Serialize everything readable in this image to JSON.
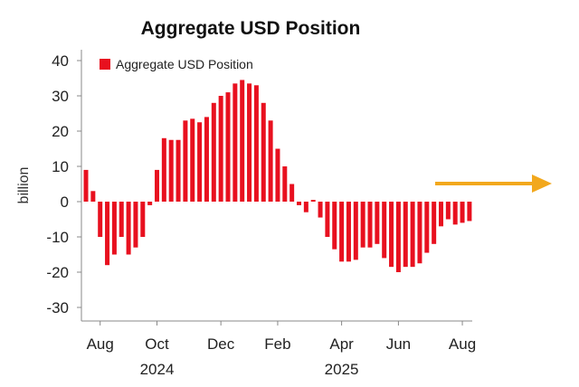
{
  "chart_data": {
    "type": "bar",
    "title": "Aggregate USD Position",
    "ylabel": "billion",
    "xlabel": "",
    "ylim": [
      -35,
      45
    ],
    "yticks": [
      40,
      30,
      20,
      10,
      0,
      -10,
      -20,
      -30
    ],
    "legend": {
      "position": "top-left",
      "label": "Aggregate USD Position"
    },
    "grid": false,
    "bar_color": "#e8101f",
    "arrow_color": "#f2a81d",
    "x_tick_labels": [
      "Aug",
      "Oct",
      "Dec",
      "Feb",
      "Apr",
      "Jun",
      "Aug"
    ],
    "x_tick_label_bar_index": [
      2,
      10,
      19,
      27,
      36,
      44,
      53
    ],
    "year_labels": [
      "2024",
      "2025"
    ],
    "year_label_bar_index": [
      10,
      36
    ],
    "series": [
      {
        "name": "Aggregate USD Position",
        "values": [
          9,
          3,
          -10,
          -18,
          -15,
          -10,
          -15,
          -13,
          -10,
          -1,
          9,
          18,
          17.5,
          17.5,
          23,
          23.5,
          22.5,
          24,
          28,
          30,
          31,
          33.5,
          34.5,
          33.5,
          33,
          28,
          23,
          15,
          10,
          5,
          -1,
          -3,
          0.5,
          -4.5,
          -10,
          -13.5,
          -17,
          -17,
          -16.5,
          -13,
          -13,
          -12,
          -16,
          -18.5,
          -20,
          -18.5,
          -18.5,
          -17.5,
          -14.5,
          -12,
          -7,
          -5,
          -6.5,
          -6,
          -5.5
        ]
      }
    ]
  }
}
